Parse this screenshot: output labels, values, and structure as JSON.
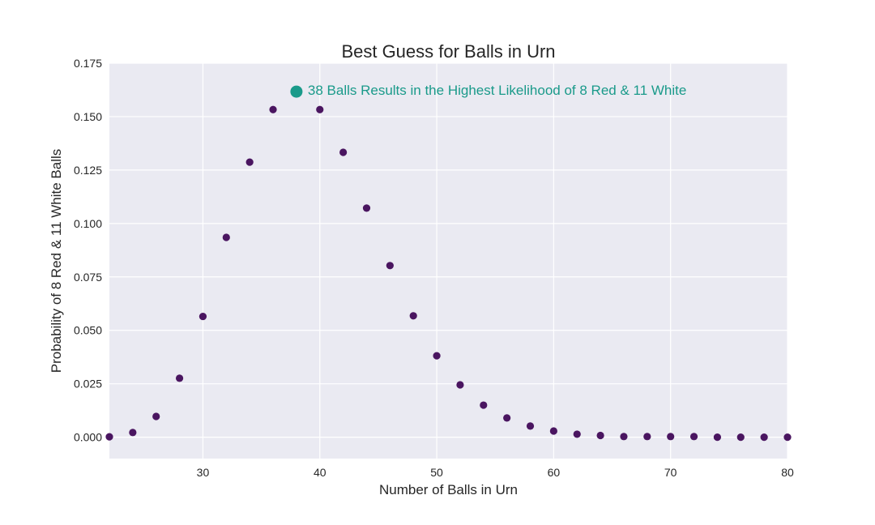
{
  "chart_data": {
    "type": "scatter",
    "title": "Best Guess for Balls in Urn",
    "xlabel": "Number of Balls in Urn",
    "ylabel": "Probability of 8 Red & 11 White Balls",
    "xlim": [
      22,
      80
    ],
    "ylim": [
      -0.01,
      0.175
    ],
    "xticks": [
      30,
      40,
      50,
      60,
      70,
      80
    ],
    "yticks": [
      0.0,
      0.025,
      0.05,
      0.075,
      0.1,
      0.125,
      0.15,
      0.175
    ],
    "ytick_labels": [
      "0.000",
      "0.025",
      "0.050",
      "0.075",
      "0.100",
      "0.125",
      "0.150",
      "0.175"
    ],
    "grid": true,
    "series": [
      {
        "color": "#4a1560",
        "x": [
          22,
          24,
          26,
          28,
          30,
          32,
          34,
          36,
          40,
          42,
          44,
          46,
          48,
          50,
          52,
          54,
          56,
          58,
          60,
          62,
          64,
          66,
          68,
          70,
          72,
          74,
          76,
          78,
          80
        ],
        "y": [
          0.0002,
          0.0022,
          0.0097,
          0.0276,
          0.0565,
          0.0935,
          0.1287,
          0.1533,
          0.1533,
          0.1333,
          0.1072,
          0.0803,
          0.0568,
          0.0381,
          0.0245,
          0.015,
          0.009,
          0.0052,
          0.0029,
          0.0014,
          0.0008,
          0.0003,
          0.0003,
          0.0003,
          0.0003,
          0.0,
          0.0,
          0.0,
          0.0
        ]
      }
    ],
    "highlight": {
      "x": 38,
      "y": 0.1617,
      "color": "#1a9a8a",
      "label": "38 Balls Results in the Highest Likelihood of 8 Red & 11 White"
    }
  }
}
